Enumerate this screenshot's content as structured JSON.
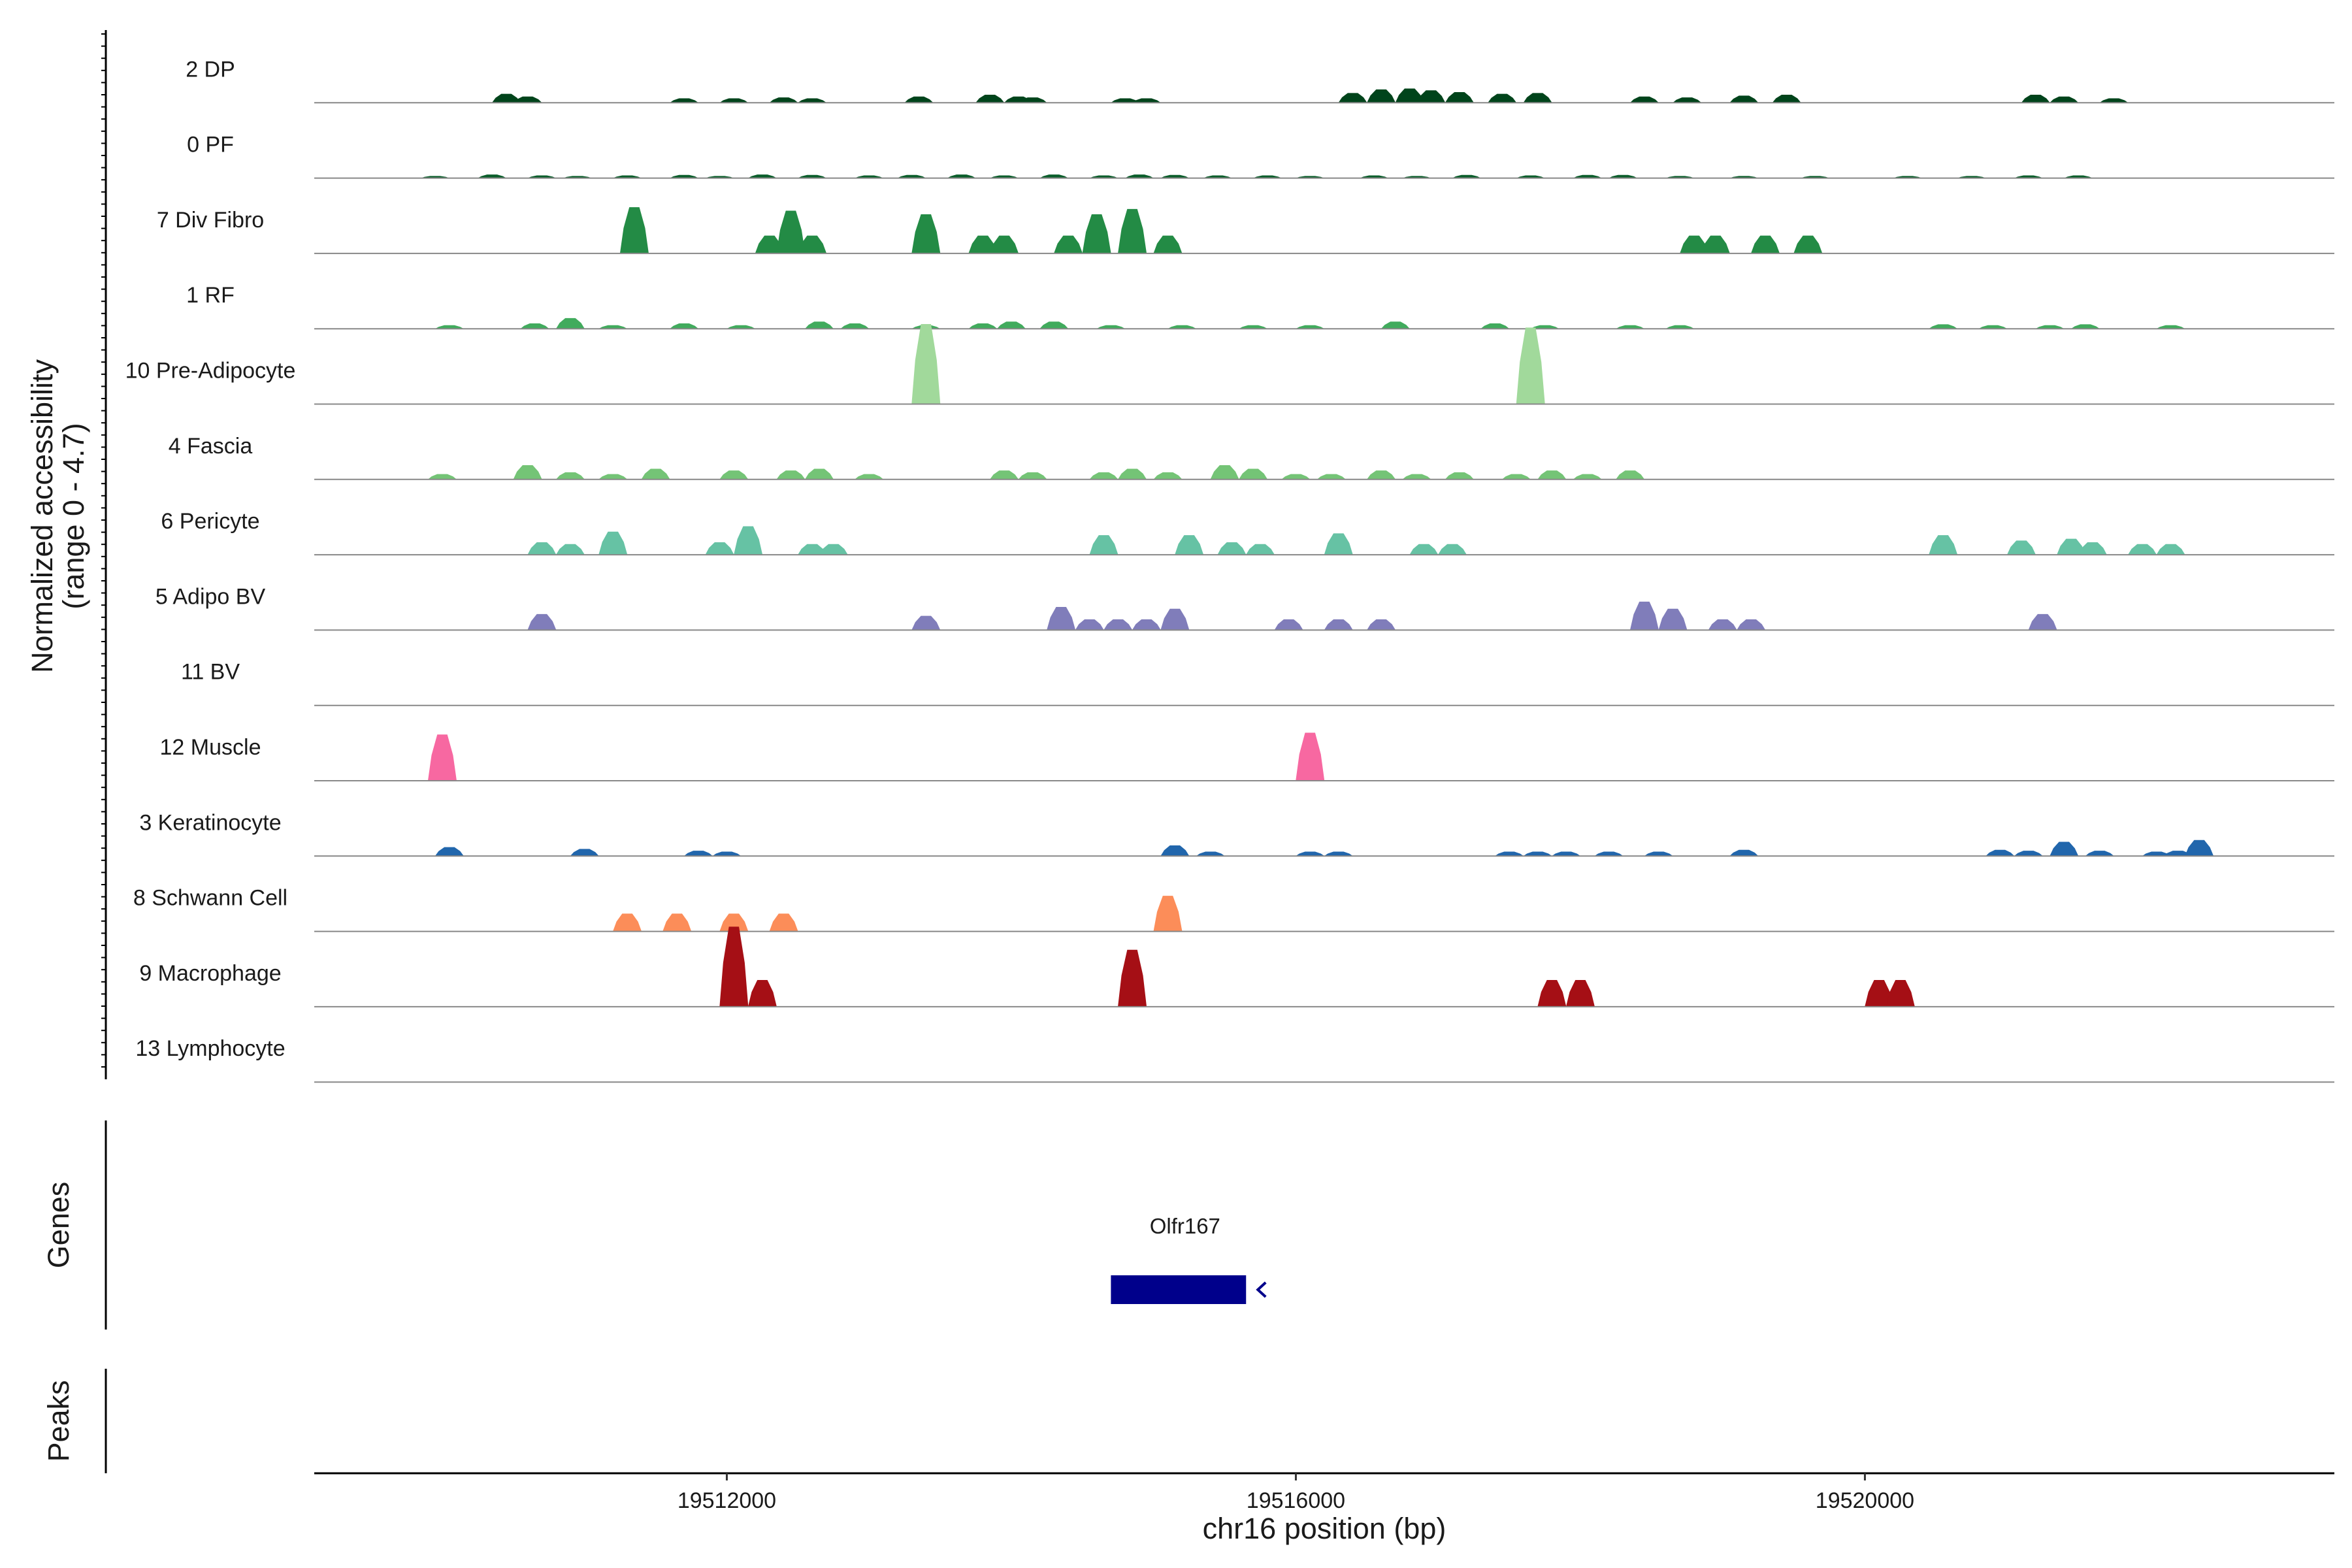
{
  "chart_data": {
    "type": "area",
    "title": "",
    "ylabel_lines": [
      "Normalized accessibility",
      "(range 0 - 4.7)"
    ],
    "ylim": [
      0,
      4.7
    ],
    "xlabel": "chr16 position (bp)",
    "xlim": [
      19509100,
      19523300
    ],
    "xticks": [
      19512000,
      19516000,
      19520000
    ],
    "xtick_labels": [
      "19512000",
      "19516000",
      "19520000"
    ],
    "genes_label": "Genes",
    "peaks_label": "Peaks",
    "genes": [
      {
        "name": "Olfr167",
        "start": 19514700,
        "end": 19515650,
        "strand": "-",
        "color": "#00008B"
      }
    ],
    "series": [
      {
        "name": "2 DP",
        "color": "#00441B",
        "peaks": [
          [
            19510450,
            0.5
          ],
          [
            19510600,
            0.35
          ],
          [
            19511700,
            0.25
          ],
          [
            19512050,
            0.25
          ],
          [
            19512400,
            0.3
          ],
          [
            19512600,
            0.25
          ],
          [
            19513350,
            0.35
          ],
          [
            19513850,
            0.45
          ],
          [
            19514050,
            0.35
          ],
          [
            19514150,
            0.3
          ],
          [
            19514800,
            0.25
          ],
          [
            19514950,
            0.25
          ],
          [
            19516400,
            0.55
          ],
          [
            19516600,
            0.75
          ],
          [
            19516800,
            0.8
          ],
          [
            19516950,
            0.7
          ],
          [
            19517150,
            0.6
          ],
          [
            19517450,
            0.5
          ],
          [
            19517700,
            0.55
          ],
          [
            19518450,
            0.35
          ],
          [
            19518750,
            0.3
          ],
          [
            19519150,
            0.4
          ],
          [
            19519450,
            0.45
          ],
          [
            19521200,
            0.45
          ],
          [
            19521400,
            0.35
          ],
          [
            19521750,
            0.25
          ]
        ]
      },
      {
        "name": "0 PF",
        "color": "#0B5E2B",
        "peaks": [
          [
            19509950,
            0.12
          ],
          [
            19510350,
            0.2
          ],
          [
            19510700,
            0.15
          ],
          [
            19510950,
            0.12
          ],
          [
            19511300,
            0.15
          ],
          [
            19511700,
            0.18
          ],
          [
            19511950,
            0.12
          ],
          [
            19512250,
            0.2
          ],
          [
            19512600,
            0.18
          ],
          [
            19513000,
            0.15
          ],
          [
            19513300,
            0.18
          ],
          [
            19513650,
            0.2
          ],
          [
            19513950,
            0.15
          ],
          [
            19514300,
            0.2
          ],
          [
            19514650,
            0.15
          ],
          [
            19514900,
            0.2
          ],
          [
            19515150,
            0.18
          ],
          [
            19515450,
            0.15
          ],
          [
            19515800,
            0.15
          ],
          [
            19516100,
            0.12
          ],
          [
            19516550,
            0.15
          ],
          [
            19516850,
            0.12
          ],
          [
            19517200,
            0.18
          ],
          [
            19517650,
            0.15
          ],
          [
            19518050,
            0.18
          ],
          [
            19518300,
            0.18
          ],
          [
            19518700,
            0.12
          ],
          [
            19519150,
            0.12
          ],
          [
            19519650,
            0.12
          ],
          [
            19520300,
            0.12
          ],
          [
            19520750,
            0.12
          ],
          [
            19521150,
            0.15
          ],
          [
            19521500,
            0.15
          ]
        ]
      },
      {
        "name": "7 Div Fibro",
        "color": "#238B45",
        "peaks": [
          [
            19511350,
            2.6
          ],
          [
            19512300,
            1.0
          ],
          [
            19512450,
            2.4
          ],
          [
            19512600,
            1.0
          ],
          [
            19513400,
            2.2
          ],
          [
            19513800,
            1.0
          ],
          [
            19513950,
            1.0
          ],
          [
            19514400,
            1.0
          ],
          [
            19514600,
            2.2
          ],
          [
            19514850,
            2.5
          ],
          [
            19515100,
            1.0
          ],
          [
            19518800,
            1.0
          ],
          [
            19518950,
            1.0
          ],
          [
            19519300,
            1.0
          ],
          [
            19519600,
            1.0
          ]
        ]
      },
      {
        "name": "1 RF",
        "color": "#41AB5D",
        "peaks": [
          [
            19510050,
            0.2
          ],
          [
            19510650,
            0.3
          ],
          [
            19510900,
            0.6
          ],
          [
            19511200,
            0.2
          ],
          [
            19511700,
            0.3
          ],
          [
            19512100,
            0.2
          ],
          [
            19512650,
            0.4
          ],
          [
            19512900,
            0.3
          ],
          [
            19513400,
            0.2
          ],
          [
            19513800,
            0.3
          ],
          [
            19514000,
            0.4
          ],
          [
            19514300,
            0.4
          ],
          [
            19514700,
            0.2
          ],
          [
            19515200,
            0.2
          ],
          [
            19515700,
            0.2
          ],
          [
            19516100,
            0.2
          ],
          [
            19516700,
            0.4
          ],
          [
            19517400,
            0.3
          ],
          [
            19517750,
            0.2
          ],
          [
            19518350,
            0.2
          ],
          [
            19518700,
            0.2
          ],
          [
            19520550,
            0.25
          ],
          [
            19520900,
            0.2
          ],
          [
            19521300,
            0.2
          ],
          [
            19521550,
            0.25
          ],
          [
            19522150,
            0.2
          ]
        ]
      },
      {
        "name": "10 Pre-Adipocyte",
        "color": "#A1D99B",
        "peaks": [
          [
            19513400,
            4.5
          ],
          [
            19517650,
            4.3
          ]
        ]
      },
      {
        "name": "4 Fascia",
        "color": "#74C476",
        "peaks": [
          [
            19510000,
            0.3
          ],
          [
            19510600,
            0.8
          ],
          [
            19510900,
            0.4
          ],
          [
            19511200,
            0.3
          ],
          [
            19511500,
            0.6
          ],
          [
            19512050,
            0.5
          ],
          [
            19512450,
            0.5
          ],
          [
            19512650,
            0.6
          ],
          [
            19513000,
            0.3
          ],
          [
            19513950,
            0.5
          ],
          [
            19514150,
            0.4
          ],
          [
            19514650,
            0.4
          ],
          [
            19514850,
            0.6
          ],
          [
            19515100,
            0.4
          ],
          [
            19515500,
            0.8
          ],
          [
            19515700,
            0.6
          ],
          [
            19516000,
            0.3
          ],
          [
            19516250,
            0.3
          ],
          [
            19516600,
            0.5
          ],
          [
            19516850,
            0.3
          ],
          [
            19517150,
            0.4
          ],
          [
            19517550,
            0.3
          ],
          [
            19517800,
            0.5
          ],
          [
            19518050,
            0.3
          ],
          [
            19518350,
            0.5
          ]
        ]
      },
      {
        "name": "6 Pericyte",
        "color": "#66C2A4",
        "peaks": [
          [
            19510700,
            0.7
          ],
          [
            19510900,
            0.6
          ],
          [
            19511200,
            1.3
          ],
          [
            19511950,
            0.7
          ],
          [
            19512150,
            1.6
          ],
          [
            19512600,
            0.6
          ],
          [
            19512750,
            0.6
          ],
          [
            19514650,
            1.1
          ],
          [
            19515250,
            1.1
          ],
          [
            19515550,
            0.7
          ],
          [
            19515750,
            0.6
          ],
          [
            19516300,
            1.2
          ],
          [
            19516900,
            0.6
          ],
          [
            19517100,
            0.6
          ],
          [
            19520550,
            1.1
          ],
          [
            19521100,
            0.8
          ],
          [
            19521450,
            0.9
          ],
          [
            19521600,
            0.7
          ],
          [
            19521950,
            0.6
          ],
          [
            19522150,
            0.6
          ]
        ]
      },
      {
        "name": "5 Adipo BV",
        "color": "#807DBA",
        "peaks": [
          [
            19510700,
            0.9
          ],
          [
            19513400,
            0.8
          ],
          [
            19514350,
            1.3
          ],
          [
            19514550,
            0.6
          ],
          [
            19514750,
            0.6
          ],
          [
            19514950,
            0.6
          ],
          [
            19515150,
            1.2
          ],
          [
            19515950,
            0.6
          ],
          [
            19516300,
            0.6
          ],
          [
            19516600,
            0.6
          ],
          [
            19518450,
            1.6
          ],
          [
            19518650,
            1.2
          ],
          [
            19519000,
            0.6
          ],
          [
            19519200,
            0.6
          ],
          [
            19521250,
            0.9
          ]
        ]
      },
      {
        "name": "11 BV",
        "color": "#6A51A3",
        "peaks": []
      },
      {
        "name": "12 Muscle",
        "color": "#F768A1",
        "peaks": [
          [
            19510000,
            2.6
          ],
          [
            19516100,
            2.7
          ]
        ]
      },
      {
        "name": "3 Keratinocyte",
        "color": "#2166AC",
        "peaks": [
          [
            19510050,
            0.5
          ],
          [
            19511000,
            0.4
          ],
          [
            19511800,
            0.3
          ],
          [
            19512000,
            0.25
          ],
          [
            19515150,
            0.6
          ],
          [
            19515400,
            0.25
          ],
          [
            19516100,
            0.25
          ],
          [
            19516300,
            0.25
          ],
          [
            19517500,
            0.25
          ],
          [
            19517700,
            0.25
          ],
          [
            19517900,
            0.25
          ],
          [
            19518200,
            0.25
          ],
          [
            19518550,
            0.25
          ],
          [
            19519150,
            0.35
          ],
          [
            19520950,
            0.35
          ],
          [
            19521150,
            0.3
          ],
          [
            19521400,
            0.8
          ],
          [
            19521650,
            0.3
          ],
          [
            19522050,
            0.25
          ],
          [
            19522200,
            0.3
          ],
          [
            19522350,
            0.9
          ]
        ]
      },
      {
        "name": "8 Schwann Cell",
        "color": "#FC8D59",
        "peaks": [
          [
            19511300,
            1.0
          ],
          [
            19511650,
            1.0
          ],
          [
            19512050,
            1.0
          ],
          [
            19512400,
            1.0
          ],
          [
            19515100,
            2.0
          ]
        ]
      },
      {
        "name": "9 Macrophage",
        "color": "#A50F15",
        "peaks": [
          [
            19512050,
            4.5
          ],
          [
            19512250,
            1.5
          ],
          [
            19514850,
            3.2
          ],
          [
            19517800,
            1.5
          ],
          [
            19518000,
            1.5
          ],
          [
            19520100,
            1.5
          ],
          [
            19520250,
            1.5
          ]
        ]
      },
      {
        "name": "13 Lymphocyte",
        "color": "#E31A1C",
        "peaks": []
      }
    ]
  }
}
